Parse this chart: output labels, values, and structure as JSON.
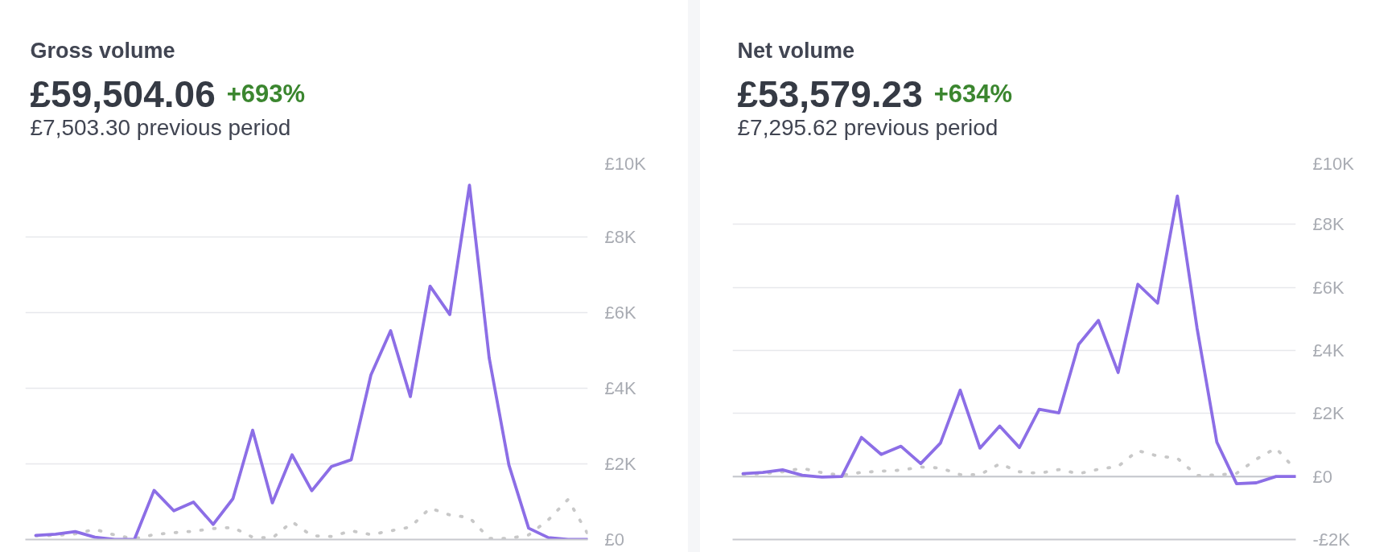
{
  "chart_data": [
    {
      "type": "line",
      "title": "Gross volume",
      "subtitle": "£59,504.06",
      "annotations": [
        "+693%",
        "£7,503.30 previous period"
      ],
      "categories": [
        null,
        null,
        null,
        null,
        null,
        null,
        null,
        null,
        null,
        null,
        null,
        null,
        null,
        null,
        null,
        null,
        null,
        null,
        null,
        null,
        null,
        null,
        null,
        null,
        null,
        null,
        null,
        null,
        null
      ],
      "series": [
        {
          "color": "#c8c8c8",
          "line_style": "dotted",
          "values": [
            100,
            110,
            150,
            270,
            120,
            20,
            130,
            180,
            220,
            290,
            320,
            60,
            40,
            470,
            100,
            80,
            230,
            130,
            230,
            330,
            830,
            650,
            580,
            30,
            30,
            120,
            520,
            1060,
            150
          ]
        },
        {
          "color": "#8c6ee6",
          "line_style": "solid",
          "values": [
            110,
            140,
            210,
            60,
            0,
            0,
            1300,
            760,
            990,
            400,
            1080,
            2890,
            970,
            2240,
            1290,
            1930,
            2110,
            4350,
            5520,
            3780,
            6700,
            5950,
            9370,
            4800,
            1970,
            300,
            50,
            0,
            0
          ]
        }
      ],
      "ylim": [
        0,
        10000
      ],
      "yticks": [
        {
          "value": 0,
          "label": "£0"
        },
        {
          "value": 2000,
          "label": "£2K"
        },
        {
          "value": 4000,
          "label": "£4K"
        },
        {
          "value": 6000,
          "label": "£6K"
        },
        {
          "value": 8000,
          "label": "£8K"
        },
        {
          "value": 10000,
          "label": "£10K"
        }
      ],
      "grid": "y",
      "tick_labels": "y"
    },
    {
      "type": "line",
      "title": "Net volume",
      "subtitle": "£53,579.23",
      "annotations": [
        "+634%",
        "£7,295.62 previous period"
      ],
      "categories": [
        null,
        null,
        null,
        null,
        null,
        null,
        null,
        null,
        null,
        null,
        null,
        null,
        null,
        null,
        null,
        null,
        null,
        null,
        null,
        null,
        null,
        null,
        null,
        null,
        null,
        null,
        null,
        null,
        null
      ],
      "series": [
        {
          "color": "#c8c8c8",
          "line_style": "dotted",
          "values": [
            70,
            90,
            150,
            260,
            120,
            40,
            130,
            170,
            200,
            300,
            270,
            60,
            60,
            400,
            150,
            100,
            220,
            90,
            230,
            320,
            820,
            650,
            580,
            30,
            50,
            100,
            550,
            900,
            200
          ]
        },
        {
          "color": "#8c6ee6",
          "line_style": "solid",
          "values": [
            90,
            130,
            210,
            40,
            -20,
            0,
            1240,
            700,
            960,
            410,
            1060,
            2740,
            900,
            1600,
            920,
            2130,
            2020,
            4190,
            4950,
            3300,
            6100,
            5500,
            8900,
            4700,
            1090,
            -230,
            -200,
            0,
            0
          ]
        }
      ],
      "ylim": [
        -2000,
        10000
      ],
      "yticks": [
        {
          "value": -2000,
          "label": "-£2K"
        },
        {
          "value": 0,
          "label": "£0"
        },
        {
          "value": 2000,
          "label": "£2K"
        },
        {
          "value": 4000,
          "label": "£4K"
        },
        {
          "value": 6000,
          "label": "£6K"
        },
        {
          "value": 8000,
          "label": "£8K"
        },
        {
          "value": 10000,
          "label": "£10K"
        }
      ],
      "ref_lines": [
        {
          "axis": "y",
          "value": 0,
          "color": "#c4c6cc"
        }
      ],
      "grid": "y",
      "tick_labels": "y"
    }
  ]
}
